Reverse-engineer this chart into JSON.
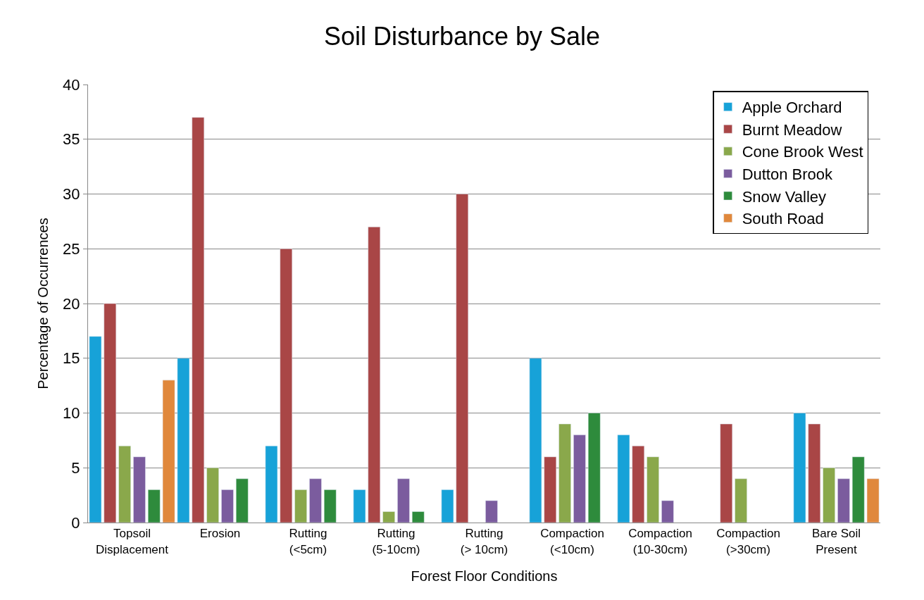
{
  "chart_data": {
    "type": "bar",
    "title": "Soil Disturbance by Sale",
    "xlabel": "Forest Floor Conditions",
    "ylabel": "Percentage of Occurrences",
    "categories": [
      "Topsoil\nDisplacement",
      "Erosion",
      "Rutting\n(<5cm)",
      "Rutting\n(5-10cm)",
      "Rutting\n(> 10cm)",
      "Compaction\n(<10cm)",
      "Compaction\n(10-30cm)",
      "Compaction\n(>30cm)",
      "Bare Soil\nPresent"
    ],
    "series": [
      {
        "name": "Apple Orchard",
        "color": "#17a2d8",
        "values": [
          17,
          15,
          7,
          3,
          3,
          15,
          8,
          null,
          10
        ]
      },
      {
        "name": "Burnt Meadow",
        "color": "#a94646",
        "values": [
          20,
          37,
          25,
          27,
          30,
          6,
          7,
          9,
          9
        ]
      },
      {
        "name": "Cone Brook West",
        "color": "#8aa84b",
        "values": [
          7,
          5,
          3,
          1,
          null,
          9,
          6,
          4,
          5
        ]
      },
      {
        "name": "Dutton Brook",
        "color": "#7b5c9e",
        "values": [
          6,
          3,
          4,
          4,
          2,
          8,
          2,
          null,
          4
        ]
      },
      {
        "name": "Snow Valley",
        "color": "#2e8b3c",
        "values": [
          3,
          4,
          3,
          1,
          null,
          10,
          null,
          null,
          6
        ]
      },
      {
        "name": "South Road",
        "color": "#e0883c",
        "values": [
          13,
          null,
          null,
          null,
          null,
          null,
          null,
          null,
          4
        ]
      }
    ],
    "ylim": [
      0,
      40
    ],
    "yticks": [
      0,
      5,
      10,
      15,
      20,
      25,
      30,
      35,
      40
    ],
    "grid": "y",
    "legend": "top right"
  }
}
